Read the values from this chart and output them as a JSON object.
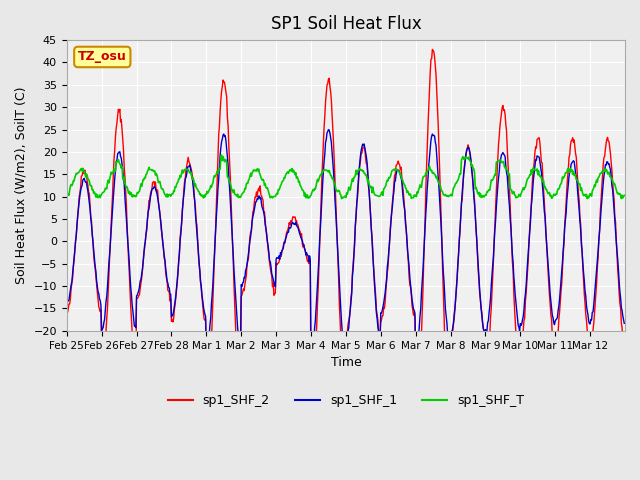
{
  "title": "SP1 Soil Heat Flux",
  "xlabel": "Time",
  "ylabel": "Soil Heat Flux (W/m2), SoilT (C)",
  "ylim": [
    -20,
    45
  ],
  "yticks": [
    -20,
    -15,
    -10,
    -5,
    0,
    5,
    10,
    15,
    20,
    25,
    30,
    35,
    40,
    45
  ],
  "bg_color": "#e8e8e8",
  "plot_bg": "#f0f0f0",
  "line_colors": {
    "shf2": "#ff0000",
    "shf1": "#0000cc",
    "shft": "#00cc00"
  },
  "legend_labels": [
    "sp1_SHF_2",
    "sp1_SHF_1",
    "sp1_SHF_T"
  ],
  "tz_label": "TZ_osu",
  "tz_bg": "#ffff99",
  "tz_border": "#cc8800",
  "tick_labels": [
    "Feb 25",
    "Feb 26",
    "Feb 27",
    "Feb 28",
    "Mar 1",
    "Mar 2",
    "Mar 3",
    "Mar 4",
    "Mar 5",
    "Mar 6",
    "Mar 7",
    "Mar 8",
    "Mar 9",
    "Mar 10",
    "Mar 11",
    "Mar 12"
  ],
  "n_days": 16,
  "amplitudes_shf2": [
    16,
    29,
    13,
    18,
    36,
    12,
    5,
    36,
    21,
    18,
    43,
    21,
    30,
    23,
    23,
    23
  ],
  "amplitudes_shf1": [
    14,
    20,
    12,
    17,
    24,
    10,
    4,
    25,
    22,
    16,
    24,
    21,
    20,
    19,
    18,
    18
  ]
}
